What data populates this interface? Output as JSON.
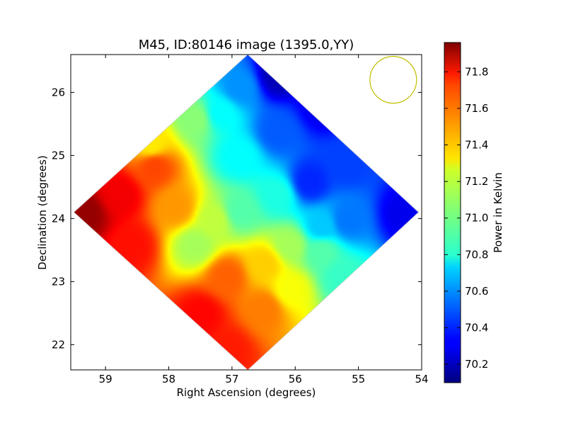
{
  "chart_data": {
    "type": "heatmap",
    "title": "M45, ID:80146 image (1395.0,YY)",
    "xlabel": "Right Ascension (degrees)",
    "ylabel": "Declination (degrees)",
    "xlim": [
      59.55,
      54.0
    ],
    "ylim": [
      21.6,
      26.6
    ],
    "x_inverted": true,
    "xticks": [
      59,
      58,
      57,
      56,
      55,
      54
    ],
    "yticks": [
      22,
      23,
      24,
      25,
      26
    ],
    "colorbar": {
      "label": "Power in Kelvin",
      "range": [
        70.1,
        71.96
      ],
      "ticks": [
        "70.2",
        "70.4",
        "70.6",
        "70.8",
        "71.0",
        "71.2",
        "71.4",
        "71.6",
        "71.8"
      ],
      "colormap": "jet"
    },
    "footprint": {
      "shape": "diamond",
      "vertices": [
        {
          "ra": 56.75,
          "dec": 26.6
        },
        {
          "ra": 54.05,
          "dec": 24.1
        },
        {
          "ra": 56.75,
          "dec": 21.6
        },
        {
          "ra": 59.5,
          "dec": 24.1
        }
      ]
    },
    "value_field": [
      {
        "ra": 59.35,
        "dec": 24.1,
        "value": 71.92
      },
      {
        "ra": 58.8,
        "dec": 24.4,
        "value": 71.75
      },
      {
        "ra": 58.6,
        "dec": 23.6,
        "value": 71.7
      },
      {
        "ra": 58.25,
        "dec": 24.85,
        "value": 71.6
      },
      {
        "ra": 58.3,
        "dec": 25.2,
        "value": 71.3
      },
      {
        "ra": 57.9,
        "dec": 24.2,
        "value": 71.45
      },
      {
        "ra": 57.6,
        "dec": 23.6,
        "value": 71.1
      },
      {
        "ra": 57.3,
        "dec": 24.0,
        "value": 71.15
      },
      {
        "ra": 57.5,
        "dec": 22.5,
        "value": 71.72
      },
      {
        "ra": 57.1,
        "dec": 21.95,
        "value": 71.68
      },
      {
        "ra": 57.1,
        "dec": 23.1,
        "value": 71.55
      },
      {
        "ra": 56.5,
        "dec": 22.6,
        "value": 71.5
      },
      {
        "ra": 56.5,
        "dec": 23.3,
        "value": 71.35
      },
      {
        "ra": 56.1,
        "dec": 22.9,
        "value": 71.25
      },
      {
        "ra": 56.1,
        "dec": 23.6,
        "value": 71.1
      },
      {
        "ra": 55.6,
        "dec": 23.5,
        "value": 70.95
      },
      {
        "ra": 55.3,
        "dec": 23.1,
        "value": 70.9
      },
      {
        "ra": 56.9,
        "dec": 24.15,
        "value": 70.95
      },
      {
        "ra": 57.6,
        "dec": 25.6,
        "value": 71.05
      },
      {
        "ra": 57.2,
        "dec": 25.7,
        "value": 70.8
      },
      {
        "ra": 56.9,
        "dec": 26.1,
        "value": 70.6
      },
      {
        "ra": 56.9,
        "dec": 25.0,
        "value": 70.8
      },
      {
        "ra": 56.3,
        "dec": 24.4,
        "value": 70.85
      },
      {
        "ra": 56.3,
        "dec": 25.4,
        "value": 70.5
      },
      {
        "ra": 56.3,
        "dec": 26.3,
        "value": 70.2
      },
      {
        "ra": 55.6,
        "dec": 25.8,
        "value": 70.3
      },
      {
        "ra": 55.8,
        "dec": 24.6,
        "value": 70.4
      },
      {
        "ra": 55.2,
        "dec": 24.9,
        "value": 70.45
      },
      {
        "ra": 55.2,
        "dec": 24.0,
        "value": 70.55
      },
      {
        "ra": 54.3,
        "dec": 24.1,
        "value": 70.3
      },
      {
        "ra": 55.6,
        "dec": 23.9,
        "value": 70.7
      }
    ],
    "annotation": {
      "shape": "circle",
      "center_ra": 54.45,
      "center_dec": 26.2,
      "color": "#bfbf00"
    }
  }
}
